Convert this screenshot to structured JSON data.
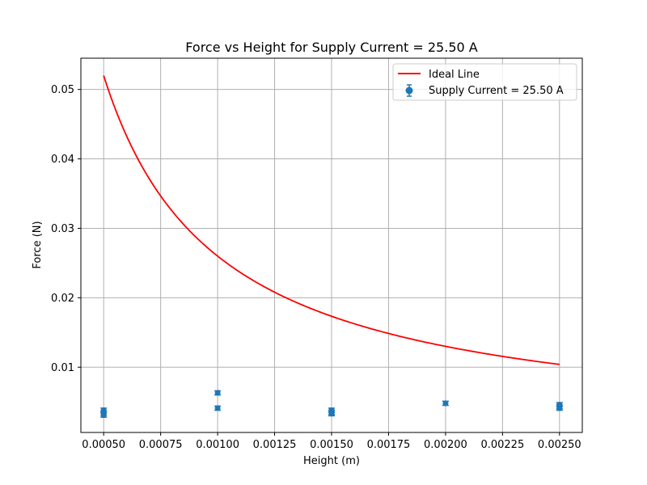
{
  "chart_data": {
    "type": "scatter",
    "title": "Force vs Height for Supply Current = 25.50 A",
    "xlabel": "Height (m)",
    "ylabel": "Force (N)",
    "xlim": [
      0.0004,
      0.0026
    ],
    "ylim": [
      0.0006,
      0.0545
    ],
    "grid": true,
    "legend_position": "top-right",
    "x_ticks": [
      0.0005,
      0.00075,
      0.001,
      0.00125,
      0.0015,
      0.00175,
      0.002,
      0.00225,
      0.0025
    ],
    "x_tick_labels": [
      "0.00050",
      "0.00075",
      "0.00100",
      "0.00125",
      "0.00150",
      "0.00175",
      "0.00200",
      "0.00225",
      "0.00250"
    ],
    "y_ticks": [
      0.01,
      0.02,
      0.03,
      0.04,
      0.05
    ],
    "y_tick_labels": [
      "0.01",
      "0.02",
      "0.03",
      "0.04",
      "0.05"
    ],
    "series": [
      {
        "name": "Ideal Line",
        "kind": "line",
        "color": "#ff0000",
        "function": "inverse",
        "coefficient": 2.6e-05,
        "x_range": [
          0.0005,
          0.0025
        ]
      },
      {
        "name": "Supply Current = 25.50 A",
        "kind": "errorbar",
        "color": "#1f77b4",
        "x": [
          0.0005,
          0.0005,
          0.0005,
          0.001,
          0.001,
          0.0015,
          0.0015,
          0.0015,
          0.002,
          0.0025,
          0.0025,
          0.0025
        ],
        "y": [
          0.0031,
          0.0034,
          0.0038,
          0.0041,
          0.0063,
          0.0033,
          0.0035,
          0.0038,
          0.0048,
          0.0041,
          0.0043,
          0.0046
        ],
        "yerr": [
          0.0003,
          0.0003,
          0.0003,
          0.0003,
          0.0003,
          0.0003,
          0.0003,
          0.0003,
          0.0003,
          0.0003,
          0.0003,
          0.0003
        ]
      }
    ]
  }
}
